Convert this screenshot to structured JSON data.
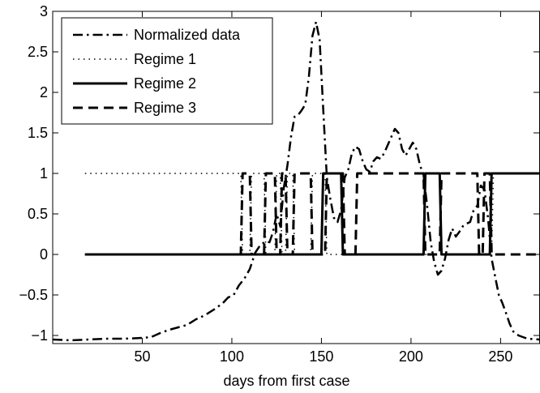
{
  "chart_data": {
    "type": "line",
    "title": "",
    "xlabel": "days from first case",
    "ylabel": "",
    "xlim": [
      0,
      272
    ],
    "ylim": [
      -1.1,
      3
    ],
    "xticks": [
      50,
      100,
      150,
      200,
      250
    ],
    "yticks": [
      -1,
      -0.5,
      0,
      0.5,
      1,
      1.5,
      2,
      2.5,
      3
    ],
    "ytick_labels": [
      "−1",
      "−0.5",
      "0",
      "0.5",
      "1",
      "1.5",
      "2",
      "2.5",
      "3"
    ],
    "grid": false,
    "legend_position": "top-left",
    "series": [
      {
        "name": "Normalized data",
        "style": "dashdot",
        "points": [
          [
            0,
            -1.05
          ],
          [
            10,
            -1.06
          ],
          [
            20,
            -1.05
          ],
          [
            30,
            -1.04
          ],
          [
            40,
            -1.04
          ],
          [
            50,
            -1.03
          ],
          [
            55,
            -1.02
          ],
          [
            60,
            -0.97
          ],
          [
            65,
            -0.93
          ],
          [
            70,
            -0.9
          ],
          [
            75,
            -0.87
          ],
          [
            80,
            -0.8
          ],
          [
            85,
            -0.75
          ],
          [
            90,
            -0.68
          ],
          [
            95,
            -0.6
          ],
          [
            98,
            -0.53
          ],
          [
            101,
            -0.5
          ],
          [
            104,
            -0.38
          ],
          [
            107,
            -0.3
          ],
          [
            110,
            -0.18
          ],
          [
            113,
            0.02
          ],
          [
            116,
            0.12
          ],
          [
            119,
            0.16
          ],
          [
            121,
            0.15
          ],
          [
            123,
            0.28
          ],
          [
            125,
            0.5
          ],
          [
            127,
            0.35
          ],
          [
            129,
            0.82
          ],
          [
            131,
            1.1
          ],
          [
            133,
            1.45
          ],
          [
            135,
            1.7
          ],
          [
            137,
            1.72
          ],
          [
            139,
            1.78
          ],
          [
            141,
            1.85
          ],
          [
            143,
            2.2
          ],
          [
            145,
            2.7
          ],
          [
            147,
            2.87
          ],
          [
            149,
            2.65
          ],
          [
            151,
            1.8
          ],
          [
            153,
            0.95
          ],
          [
            155,
            0.68
          ],
          [
            157,
            0.45
          ],
          [
            159,
            0.4
          ],
          [
            161,
            0.55
          ],
          [
            163,
            0.95
          ],
          [
            165,
            1.05
          ],
          [
            167,
            1.25
          ],
          [
            169,
            1.33
          ],
          [
            171,
            1.3
          ],
          [
            173,
            1.15
          ],
          [
            175,
            1.05
          ],
          [
            177,
            1.02
          ],
          [
            179,
            1.15
          ],
          [
            181,
            1.2
          ],
          [
            183,
            1.18
          ],
          [
            185,
            1.25
          ],
          [
            187,
            1.35
          ],
          [
            189,
            1.45
          ],
          [
            191,
            1.55
          ],
          [
            193,
            1.5
          ],
          [
            195,
            1.3
          ],
          [
            197,
            1.22
          ],
          [
            199,
            1.3
          ],
          [
            201,
            1.38
          ],
          [
            203,
            1.3
          ],
          [
            205,
            1.1
          ],
          [
            207,
            0.98
          ],
          [
            209,
            0.6
          ],
          [
            211,
            0.15
          ],
          [
            213,
            -0.1
          ],
          [
            215,
            -0.25
          ],
          [
            217,
            -0.2
          ],
          [
            219,
            -0.05
          ],
          [
            221,
            0.18
          ],
          [
            223,
            0.32
          ],
          [
            225,
            0.22
          ],
          [
            227,
            0.28
          ],
          [
            229,
            0.35
          ],
          [
            231,
            0.38
          ],
          [
            233,
            0.4
          ],
          [
            235,
            0.55
          ],
          [
            237,
            0.6
          ],
          [
            239,
            0.85
          ],
          [
            241,
            0.8
          ],
          [
            243,
            0.45
          ],
          [
            245,
            -0.05
          ],
          [
            247,
            -0.28
          ],
          [
            249,
            -0.5
          ],
          [
            251,
            -0.6
          ],
          [
            253,
            -0.72
          ],
          [
            255,
            -0.85
          ],
          [
            257,
            -0.95
          ],
          [
            260,
            -1.0
          ],
          [
            265,
            -1.04
          ],
          [
            272,
            -1.05
          ]
        ]
      },
      {
        "name": "Regime 1",
        "style": "dotted",
        "points": [
          [
            18,
            1
          ],
          [
            105,
            1
          ],
          [
            106,
            0
          ],
          [
            110,
            0
          ],
          [
            111,
            1
          ],
          [
            118,
            1
          ],
          [
            119,
            0
          ],
          [
            124,
            0
          ],
          [
            125,
            1
          ],
          [
            127,
            1
          ],
          [
            128,
            0
          ],
          [
            130,
            0
          ],
          [
            131,
            1
          ],
          [
            134,
            1
          ],
          [
            135,
            0
          ],
          [
            144,
            0
          ],
          [
            145,
            1
          ],
          [
            152,
            1
          ],
          [
            153,
            0
          ],
          [
            245,
            0
          ],
          [
            246,
            1
          ],
          [
            272,
            1
          ]
        ]
      },
      {
        "name": "Regime 2",
        "style": "solid",
        "points": [
          [
            18,
            0
          ],
          [
            150,
            0
          ],
          [
            151,
            1
          ],
          [
            161,
            1
          ],
          [
            162,
            0
          ],
          [
            207,
            0
          ],
          [
            208,
            1
          ],
          [
            216,
            1
          ],
          [
            217,
            0
          ],
          [
            244,
            0
          ],
          [
            245,
            1
          ],
          [
            272,
            1
          ]
        ]
      },
      {
        "name": "Regime 3",
        "style": "dashed",
        "points": [
          [
            18,
            0
          ],
          [
            105,
            0
          ],
          [
            106,
            1
          ],
          [
            110,
            1
          ],
          [
            111,
            0
          ],
          [
            118,
            0
          ],
          [
            119,
            1
          ],
          [
            124,
            1
          ],
          [
            125,
            0
          ],
          [
            127,
            0
          ],
          [
            128,
            1
          ],
          [
            130,
            1
          ],
          [
            131,
            0
          ],
          [
            134,
            0
          ],
          [
            135,
            1
          ],
          [
            144,
            1
          ],
          [
            145,
            0
          ],
          [
            152,
            0
          ],
          [
            153,
            1
          ],
          [
            162,
            1
          ],
          [
            163,
            0
          ],
          [
            169,
            0
          ],
          [
            170,
            1
          ],
          [
            207,
            1
          ],
          [
            208,
            0
          ],
          [
            216,
            0
          ],
          [
            217,
            1
          ],
          [
            237,
            1
          ],
          [
            238,
            0
          ],
          [
            240,
            0
          ],
          [
            241,
            1
          ],
          [
            244,
            1
          ],
          [
            245,
            0
          ],
          [
            272,
            0
          ]
        ]
      }
    ]
  }
}
